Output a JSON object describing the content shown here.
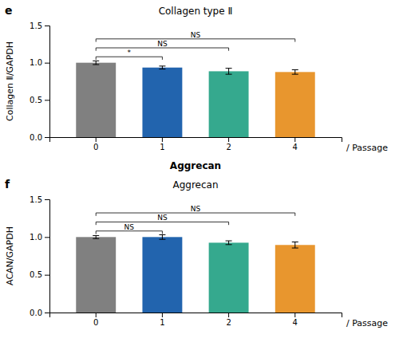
{
  "chart_data": [
    {
      "type": "bar",
      "title": "Collagen type Ⅱ",
      "ylabel": "Collagen Ⅱ/GAPDH",
      "xlabel": "/ Passage",
      "annotations": [
        "e",
        "Aggrecan"
      ],
      "categories": [
        "0",
        "1",
        "2",
        "4"
      ],
      "values": [
        1.0,
        0.935,
        0.885,
        0.875
      ],
      "errors": [
        0.025,
        0.02,
        0.04,
        0.03
      ],
      "colors": [
        "#808080",
        "#2264AE",
        "#35A98E",
        "#E8962E"
      ],
      "ylim": [
        0,
        1.5
      ],
      "yticks": [
        {
          "value": 0,
          "label": "0.0"
        },
        0.5,
        {
          "value": 1,
          "label": "1.0"
        },
        1.5
      ],
      "significance": [
        {
          "from": "0",
          "to": "1",
          "y": 1.08,
          "label": "*"
        },
        {
          "from": "0",
          "to": "2",
          "y": 1.2,
          "label": "NS"
        },
        {
          "from": "0",
          "to": "4",
          "y": 1.32,
          "label": "NS"
        }
      ]
    },
    {
      "type": "bar",
      "title": "Aggrecan",
      "ylabel": "ACAN/GAPDH",
      "xlabel": "/ Passage",
      "annotations": [
        "f"
      ],
      "categories": [
        "0",
        "1",
        "2",
        "4"
      ],
      "values": [
        1.0,
        1.0,
        0.925,
        0.895
      ],
      "errors": [
        0.02,
        0.03,
        0.025,
        0.04
      ],
      "colors": [
        "#808080",
        "#2264AE",
        "#35A98E",
        "#E8962E"
      ],
      "ylim": [
        0,
        1.5
      ],
      "yticks": [
        {
          "value": 0,
          "label": "0.0"
        },
        0.5,
        {
          "value": 1,
          "label": "1.0"
        },
        1.5
      ],
      "significance": [
        {
          "from": "0",
          "to": "1",
          "y": 1.08,
          "label": "NS"
        },
        {
          "from": "0",
          "to": "2",
          "y": 1.2,
          "label": "NS"
        },
        {
          "from": "0",
          "to": "4",
          "y": 1.32,
          "label": "NS"
        }
      ]
    }
  ]
}
